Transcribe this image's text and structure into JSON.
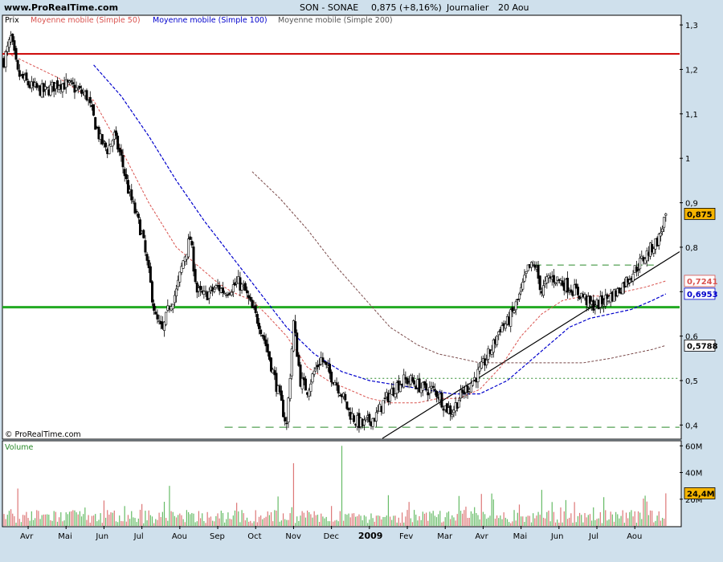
{
  "header": {
    "site": "www.ProRealTime.com",
    "ticker": "SON - SONAE",
    "price_change": "0,875 (+8,16%)",
    "period": "Journalier",
    "date": "20 Aou"
  },
  "legend": {
    "price_label": "Prix",
    "ma50": "Moyenne mobile (Simple 50)",
    "ma100": "Moyenne mobile (Simple 100)",
    "ma200": "Moyenne mobile (Simple 200)",
    "volume_label": "Volume",
    "copyright": "© ProRealTime.com"
  },
  "colors": {
    "background": "#cfe0ec",
    "panel": "#ffffff",
    "candle_up": "#ffffff",
    "candle_down": "#000000",
    "ma50": "#d9534f",
    "ma100": "#0000cc",
    "ma200": "#7a4a4a",
    "resistance_red": "#cc0000",
    "support_green": "#22aa22",
    "trendline": "#000000",
    "dashed_green": "#2a8a2a",
    "vol_up": "#66bb66",
    "vol_down": "#dd7777",
    "last_price_box": "#f5b400"
  },
  "chart_data": [
    {
      "type": "candlestick",
      "title": "SON - SONAE",
      "ylabel": "Prix",
      "ylim": [
        0.37,
        1.32
      ],
      "x_months": [
        "Avr",
        "Mai",
        "Jun",
        "Jul",
        "Aou",
        "Sep",
        "Oct",
        "Nov",
        "Dec",
        "2009",
        "Fev",
        "Mar",
        "Avr",
        "Mai",
        "Jun",
        "Jul",
        "Aou"
      ],
      "y_ticks": [
        "0,4",
        "0,5",
        "0,6",
        "0,7",
        "0,8",
        "0,9",
        "1",
        "1,1",
        "1,2",
        "1,3"
      ],
      "y_tick_values": [
        0.4,
        0.5,
        0.6,
        0.7,
        0.8,
        0.9,
        1.0,
        1.1,
        1.2,
        1.3
      ],
      "price_path": [
        [
          0,
          1.22
        ],
        [
          1,
          1.27
        ],
        [
          2,
          1.19
        ],
        [
          4,
          1.16
        ],
        [
          6,
          1.15
        ],
        [
          8,
          1.17
        ],
        [
          10,
          1.16
        ],
        [
          12,
          1.14
        ],
        [
          13,
          1.09
        ],
        [
          14,
          1.04
        ],
        [
          15,
          1.02
        ],
        [
          16,
          1.05
        ],
        [
          17,
          1.0
        ],
        [
          18,
          0.93
        ],
        [
          19,
          0.88
        ],
        [
          20,
          0.83
        ],
        [
          21,
          0.74
        ],
        [
          22,
          0.64
        ],
        [
          23,
          0.61
        ],
        [
          24,
          0.67
        ],
        [
          25,
          0.7
        ],
        [
          26,
          0.77
        ],
        [
          27,
          0.82
        ],
        [
          28,
          0.7
        ],
        [
          29,
          0.69
        ],
        [
          30,
          0.7
        ],
        [
          31,
          0.71
        ],
        [
          32,
          0.7
        ],
        [
          33,
          0.71
        ],
        [
          34,
          0.72
        ],
        [
          35,
          0.7
        ],
        [
          36,
          0.66
        ],
        [
          37,
          0.63
        ],
        [
          38,
          0.58
        ],
        [
          39,
          0.52
        ],
        [
          40,
          0.46
        ],
        [
          41,
          0.4
        ],
        [
          42,
          0.63
        ],
        [
          43,
          0.5
        ],
        [
          44,
          0.48
        ],
        [
          45,
          0.52
        ],
        [
          46,
          0.55
        ],
        [
          47,
          0.52
        ],
        [
          48,
          0.5
        ],
        [
          49,
          0.47
        ],
        [
          50,
          0.43
        ],
        [
          51,
          0.41
        ],
        [
          52,
          0.4
        ],
        [
          53,
          0.41
        ],
        [
          54,
          0.42
        ],
        [
          55,
          0.45
        ],
        [
          56,
          0.47
        ],
        [
          57,
          0.49
        ],
        [
          58,
          0.5
        ],
        [
          59,
          0.5
        ],
        [
          60,
          0.49
        ],
        [
          61,
          0.48
        ],
        [
          62,
          0.48
        ],
        [
          63,
          0.47
        ],
        [
          64,
          0.44
        ],
        [
          65,
          0.43
        ],
        [
          66,
          0.46
        ],
        [
          67,
          0.48
        ],
        [
          68,
          0.5
        ],
        [
          69,
          0.52
        ],
        [
          70,
          0.55
        ],
        [
          71,
          0.58
        ],
        [
          72,
          0.62
        ],
        [
          73,
          0.63
        ],
        [
          74,
          0.66
        ],
        [
          75,
          0.7
        ],
        [
          76,
          0.75
        ],
        [
          77,
          0.76
        ],
        [
          78,
          0.7
        ],
        [
          79,
          0.73
        ],
        [
          80,
          0.73
        ],
        [
          81,
          0.72
        ],
        [
          82,
          0.71
        ],
        [
          83,
          0.7
        ],
        [
          84,
          0.69
        ],
        [
          85,
          0.67
        ],
        [
          86,
          0.67
        ],
        [
          87,
          0.68
        ],
        [
          88,
          0.69
        ],
        [
          89,
          0.7
        ],
        [
          90,
          0.72
        ],
        [
          91,
          0.74
        ],
        [
          92,
          0.76
        ],
        [
          93,
          0.78
        ],
        [
          94,
          0.8
        ],
        [
          95,
          0.82
        ],
        [
          96,
          0.875
        ]
      ],
      "ma50_path": [
        [
          0,
          1.24
        ],
        [
          8,
          1.18
        ],
        [
          13,
          1.13
        ],
        [
          17,
          1.02
        ],
        [
          21,
          0.9
        ],
        [
          25,
          0.8
        ],
        [
          28,
          0.76
        ],
        [
          31,
          0.72
        ],
        [
          33,
          0.7
        ],
        [
          36,
          0.68
        ],
        [
          38,
          0.65
        ],
        [
          41,
          0.6
        ],
        [
          44,
          0.53
        ],
        [
          47,
          0.5
        ],
        [
          50,
          0.48
        ],
        [
          53,
          0.46
        ],
        [
          56,
          0.45
        ],
        [
          60,
          0.45
        ],
        [
          63,
          0.46
        ],
        [
          66,
          0.46
        ],
        [
          69,
          0.48
        ],
        [
          72,
          0.53
        ],
        [
          75,
          0.6
        ],
        [
          78,
          0.65
        ],
        [
          81,
          0.68
        ],
        [
          84,
          0.69
        ],
        [
          87,
          0.69
        ],
        [
          90,
          0.7
        ],
        [
          93,
          0.71
        ],
        [
          96,
          0.724
        ]
      ],
      "ma100_path": [
        [
          13,
          1.21
        ],
        [
          17,
          1.14
        ],
        [
          21,
          1.05
        ],
        [
          25,
          0.95
        ],
        [
          29,
          0.86
        ],
        [
          33,
          0.78
        ],
        [
          37,
          0.7
        ],
        [
          41,
          0.62
        ],
        [
          45,
          0.56
        ],
        [
          49,
          0.52
        ],
        [
          53,
          0.5
        ],
        [
          57,
          0.49
        ],
        [
          61,
          0.48
        ],
        [
          65,
          0.47
        ],
        [
          69,
          0.47
        ],
        [
          73,
          0.5
        ],
        [
          76,
          0.54
        ],
        [
          79,
          0.58
        ],
        [
          82,
          0.62
        ],
        [
          85,
          0.64
        ],
        [
          88,
          0.65
        ],
        [
          91,
          0.66
        ],
        [
          94,
          0.68
        ],
        [
          96,
          0.695
        ]
      ],
      "ma200_path": [
        [
          36,
          0.97
        ],
        [
          40,
          0.91
        ],
        [
          44,
          0.84
        ],
        [
          48,
          0.76
        ],
        [
          52,
          0.69
        ],
        [
          56,
          0.62
        ],
        [
          60,
          0.58
        ],
        [
          63,
          0.56
        ],
        [
          66,
          0.55
        ],
        [
          69,
          0.54
        ],
        [
          72,
          0.54
        ],
        [
          76,
          0.54
        ],
        [
          80,
          0.54
        ],
        [
          84,
          0.54
        ],
        [
          88,
          0.55
        ],
        [
          91,
          0.56
        ],
        [
          94,
          0.57
        ],
        [
          96,
          0.579
        ]
      ],
      "levels": {
        "resistance_red": 1.235,
        "support_green": 0.665,
        "dashed_upper": 0.76,
        "dotted_middle": 0.505,
        "dashed_lower": 0.395
      },
      "trendline": {
        "from": [
          50,
          0.37
        ],
        "to": [
          97,
          0.79
        ]
      },
      "last_values": {
        "price": "0,875",
        "ma50": "0,7241",
        "ma100": "0,6953",
        "ma200": "0,5788"
      }
    },
    {
      "type": "bar",
      "title": "Volume",
      "y_ticks": [
        "20M",
        "40M",
        "60M"
      ],
      "y_tick_values": [
        20,
        40,
        60
      ],
      "ylim": [
        0,
        62
      ],
      "unit": "M",
      "last_value": "24,4M",
      "spikes": [
        {
          "x": 42,
          "value": 47
        },
        {
          "x": 49,
          "value": 60
        },
        {
          "x": 2,
          "value": 28
        },
        {
          "x": 24,
          "value": 30
        },
        {
          "x": 78,
          "value": 27
        },
        {
          "x": 96,
          "value": 24.4
        }
      ]
    }
  ]
}
